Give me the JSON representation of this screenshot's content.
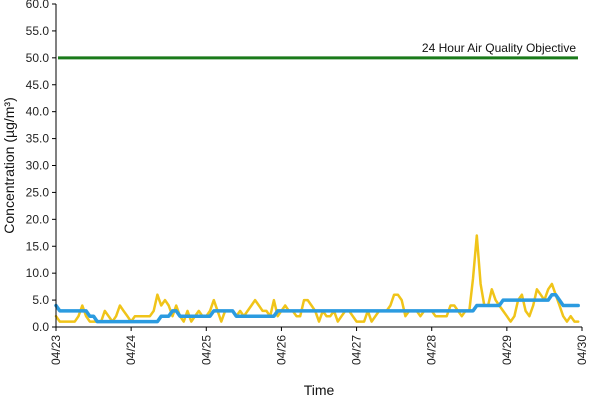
{
  "chart_data": {
    "type": "line",
    "title": "",
    "xlabel": "Time",
    "ylabel": "Concentration (µg/m³)",
    "ylim": [
      0,
      60
    ],
    "yticks": [
      "0.0",
      "5.0",
      "10.0",
      "15.0",
      "20.0",
      "25.0",
      "30.0",
      "35.0",
      "40.0",
      "45.0",
      "50.0",
      "55.0",
      "60.0"
    ],
    "xlim": [
      "04/23",
      "04/30"
    ],
    "xticks": [
      "04/23",
      "04/24",
      "04/25",
      "04/26",
      "04/27",
      "04/28",
      "04/29",
      "04/30"
    ],
    "grid": false,
    "legend": "none",
    "reference_line": {
      "label": "24 Hour Air Quality Objective",
      "value": 50,
      "color": "#1a7a1a"
    },
    "series": [
      {
        "color": "#f0c419",
        "x": [
          0.0,
          0.05,
          0.1,
          0.15,
          0.2,
          0.25,
          0.3,
          0.35,
          0.4,
          0.45,
          0.5,
          0.55,
          0.6,
          0.65,
          0.7,
          0.75,
          0.8,
          0.85,
          0.9,
          0.95,
          1.0,
          1.05,
          1.1,
          1.15,
          1.2,
          1.25,
          1.3,
          1.35,
          1.4,
          1.45,
          1.5,
          1.55,
          1.6,
          1.65,
          1.7,
          1.75,
          1.8,
          1.85,
          1.9,
          1.95,
          2.0,
          2.05,
          2.1,
          2.15,
          2.2,
          2.25,
          2.3,
          2.35,
          2.4,
          2.45,
          2.5,
          2.55,
          2.6,
          2.65,
          2.7,
          2.75,
          2.8,
          2.85,
          2.9,
          2.95,
          3.0,
          3.05,
          3.1,
          3.15,
          3.2,
          3.25,
          3.3,
          3.35,
          3.4,
          3.45,
          3.5,
          3.55,
          3.6,
          3.65,
          3.7,
          3.75,
          3.8,
          3.85,
          3.9,
          3.95,
          4.0,
          4.05,
          4.1,
          4.15,
          4.2,
          4.25,
          4.3,
          4.35,
          4.4,
          4.45,
          4.5,
          4.55,
          4.6,
          4.65,
          4.7,
          4.75,
          4.8,
          4.85,
          4.9,
          4.95,
          5.0,
          5.05,
          5.1,
          5.15,
          5.2,
          5.25,
          5.3,
          5.35,
          5.4,
          5.45,
          5.5,
          5.55,
          5.6,
          5.65,
          5.7,
          5.75,
          5.8,
          5.85,
          5.9,
          5.95,
          6.0,
          6.05,
          6.1,
          6.15,
          6.2,
          6.25,
          6.3,
          6.35,
          6.4,
          6.45,
          6.5,
          6.55,
          6.6,
          6.65,
          6.7,
          6.75,
          6.8,
          6.85,
          6.9,
          6.95
        ],
        "values": [
          2,
          1,
          1,
          1,
          1,
          1,
          2,
          4,
          2,
          1,
          1,
          1,
          1,
          3,
          2,
          1,
          2,
          4,
          3,
          2,
          1,
          2,
          2,
          2,
          2,
          2,
          3,
          6,
          4,
          5,
          4,
          2,
          4,
          2,
          1,
          3,
          1,
          2,
          3,
          2,
          2,
          3,
          5,
          3,
          1,
          3,
          3,
          3,
          2,
          3,
          2,
          3,
          4,
          5,
          4,
          3,
          3,
          2,
          5,
          2,
          3,
          4,
          3,
          3,
          2,
          2,
          5,
          5,
          4,
          3,
          1,
          3,
          2,
          2,
          3,
          1,
          2,
          3,
          3,
          2,
          1,
          1,
          1,
          3,
          1,
          2,
          3,
          3,
          3,
          4,
          6,
          6,
          5,
          2,
          3,
          3,
          3,
          2,
          3,
          3,
          3,
          2,
          2,
          2,
          2,
          4,
          4,
          3,
          2,
          3,
          3,
          9,
          17,
          8,
          4,
          4,
          7,
          5,
          4,
          3,
          2,
          1,
          2,
          5,
          6,
          3,
          2,
          4,
          7,
          6,
          5,
          7,
          8,
          6,
          4,
          2,
          1,
          2,
          1,
          1
        ]
      },
      {
        "color": "#2b9be0",
        "x": [
          0.0,
          0.05,
          0.1,
          0.15,
          0.2,
          0.25,
          0.3,
          0.35,
          0.4,
          0.45,
          0.5,
          0.55,
          0.6,
          0.65,
          0.7,
          0.75,
          0.8,
          0.85,
          0.9,
          0.95,
          1.0,
          1.05,
          1.1,
          1.15,
          1.2,
          1.25,
          1.3,
          1.35,
          1.4,
          1.45,
          1.5,
          1.55,
          1.6,
          1.65,
          1.7,
          1.75,
          1.8,
          1.85,
          1.9,
          1.95,
          2.0,
          2.05,
          2.1,
          2.15,
          2.2,
          2.25,
          2.3,
          2.35,
          2.4,
          2.45,
          2.5,
          2.55,
          2.6,
          2.65,
          2.7,
          2.75,
          2.8,
          2.85,
          2.9,
          2.95,
          3.0,
          3.05,
          3.1,
          3.15,
          3.2,
          3.25,
          3.3,
          3.35,
          3.4,
          3.45,
          3.5,
          3.55,
          3.6,
          3.65,
          3.7,
          3.75,
          3.8,
          3.85,
          3.9,
          3.95,
          4.0,
          4.05,
          4.1,
          4.15,
          4.2,
          4.25,
          4.3,
          4.35,
          4.4,
          4.45,
          4.5,
          4.55,
          4.6,
          4.65,
          4.7,
          4.75,
          4.8,
          4.85,
          4.9,
          4.95,
          5.0,
          5.05,
          5.1,
          5.15,
          5.2,
          5.25,
          5.3,
          5.35,
          5.4,
          5.45,
          5.5,
          5.55,
          5.6,
          5.65,
          5.7,
          5.75,
          5.8,
          5.85,
          5.9,
          5.95,
          6.0,
          6.05,
          6.1,
          6.15,
          6.2,
          6.25,
          6.3,
          6.35,
          6.4,
          6.45,
          6.5,
          6.55,
          6.6,
          6.65,
          6.7,
          6.75,
          6.8,
          6.85,
          6.9,
          6.95
        ],
        "values": [
          4,
          3,
          3,
          3,
          3,
          3,
          3,
          3,
          3,
          2,
          2,
          1,
          1,
          1,
          1,
          1,
          1,
          1,
          1,
          1,
          1,
          1,
          1,
          1,
          1,
          1,
          1,
          1,
          2,
          2,
          2,
          3,
          3,
          2,
          2,
          2,
          2,
          2,
          2,
          2,
          2,
          2,
          3,
          3,
          3,
          3,
          3,
          3,
          2,
          2,
          2,
          2,
          2,
          2,
          2,
          2,
          2,
          2,
          2,
          3,
          3,
          3,
          3,
          3,
          3,
          3,
          3,
          3,
          3,
          3,
          3,
          3,
          3,
          3,
          3,
          3,
          3,
          3,
          3,
          3,
          3,
          3,
          3,
          3,
          3,
          3,
          3,
          3,
          3,
          3,
          3,
          3,
          3,
          3,
          3,
          3,
          3,
          3,
          3,
          3,
          3,
          3,
          3,
          3,
          3,
          3,
          3,
          3,
          3,
          3,
          3,
          3,
          4,
          4,
          4,
          4,
          4,
          4,
          4,
          5,
          5,
          5,
          5,
          5,
          5,
          5,
          5,
          5,
          5,
          5,
          5,
          5,
          6,
          6,
          5,
          4,
          4,
          4,
          4,
          4
        ]
      }
    ]
  }
}
